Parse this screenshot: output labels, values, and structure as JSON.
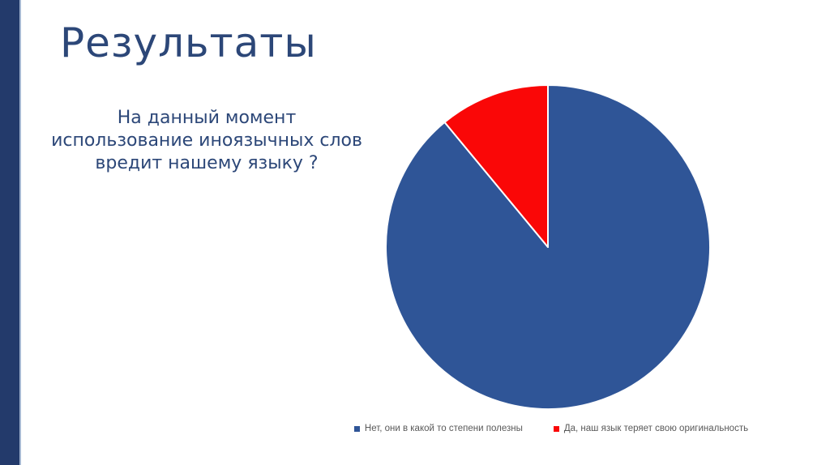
{
  "slide": {
    "title": "Результаты",
    "question": {
      "lines": [
        "На данный момент",
        "использование иноязычных слов",
        "вредит нашему языку ?"
      ],
      "full_text": "На данный момент использование иноязычных слов вредит нашему языку ?"
    }
  },
  "colors": {
    "background": "#FFFFFF",
    "left_accent_bar": "#233A6B",
    "left_accent_bar_edge": "#A5B7D2",
    "heading_text": "#2C4778",
    "legend_text": "#595959",
    "pie_blue": "#2F5597",
    "pie_red": "#FA0707"
  },
  "chart_data": {
    "type": "pie",
    "title": "",
    "labels": [
      "Нет, они в какой то степени полезны",
      "Да, наш язык теряет свою оригинальность"
    ],
    "values": [
      89,
      11
    ],
    "colors": [
      "#2F5597",
      "#FA0707"
    ],
    "start_angle_deg": 0,
    "direction": "clockwise",
    "slice_border_color": "#FFFFFF",
    "legend_position": "bottom",
    "data_labels_shown": false
  }
}
